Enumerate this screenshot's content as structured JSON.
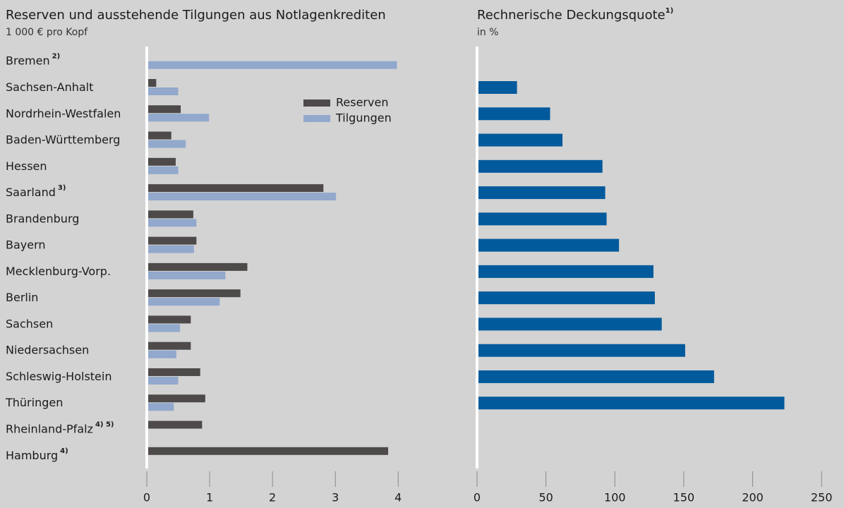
{
  "chart_data": [
    {
      "type": "hbar",
      "title": "Reserven und ausstehende Tilgungen aus Notlagenkrediten",
      "subtitle": "1 000 € pro Kopf",
      "categories": [
        "Bremen",
        "Sachsen-Anhalt",
        "Nordrhein-Westfalen",
        "Baden-Württemberg",
        "Hessen",
        "Saarland",
        "Brandenburg",
        "Bayern",
        "Mecklenburg-Vorp.",
        "Berlin",
        "Sachsen",
        "Niedersachsen",
        "Schleswig-Holstein",
        "Thüringen",
        "Rheinland-Pfalz",
        "Hamburg"
      ],
      "category_notes": [
        "2)",
        null,
        null,
        null,
        null,
        "3)",
        null,
        null,
        null,
        null,
        null,
        null,
        null,
        null,
        "4) 5)",
        "4)"
      ],
      "series": [
        {
          "name": "Reserven",
          "color": "#4d4a49",
          "values": [
            null,
            0.15,
            0.54,
            0.39,
            0.46,
            2.81,
            0.74,
            0.79,
            1.6,
            1.49,
            0.7,
            0.7,
            0.85,
            0.93,
            0.88,
            3.84
          ]
        },
        {
          "name": "Tilgungen",
          "color": "#92a8cc",
          "values": [
            3.98,
            0.5,
            0.99,
            0.62,
            0.5,
            3.01,
            0.79,
            0.75,
            1.25,
            1.16,
            0.53,
            0.47,
            0.5,
            0.43,
            null,
            null
          ]
        }
      ],
      "xlim": [
        0,
        4.3
      ],
      "xticks": [
        0,
        1,
        2,
        3,
        4
      ]
    },
    {
      "type": "hbar",
      "title": "Rechnerische Deckungsquote",
      "title_note": "1)",
      "subtitle": "in %",
      "series": [
        {
          "color": "#005a9c",
          "values": [
            null,
            29,
            53,
            62,
            91,
            93,
            94,
            103,
            128,
            129,
            134,
            151,
            172,
            223,
            null,
            null
          ]
        }
      ],
      "xlim": [
        0,
        255
      ],
      "xticks": [
        0,
        50,
        100,
        150,
        200,
        250
      ]
    }
  ]
}
